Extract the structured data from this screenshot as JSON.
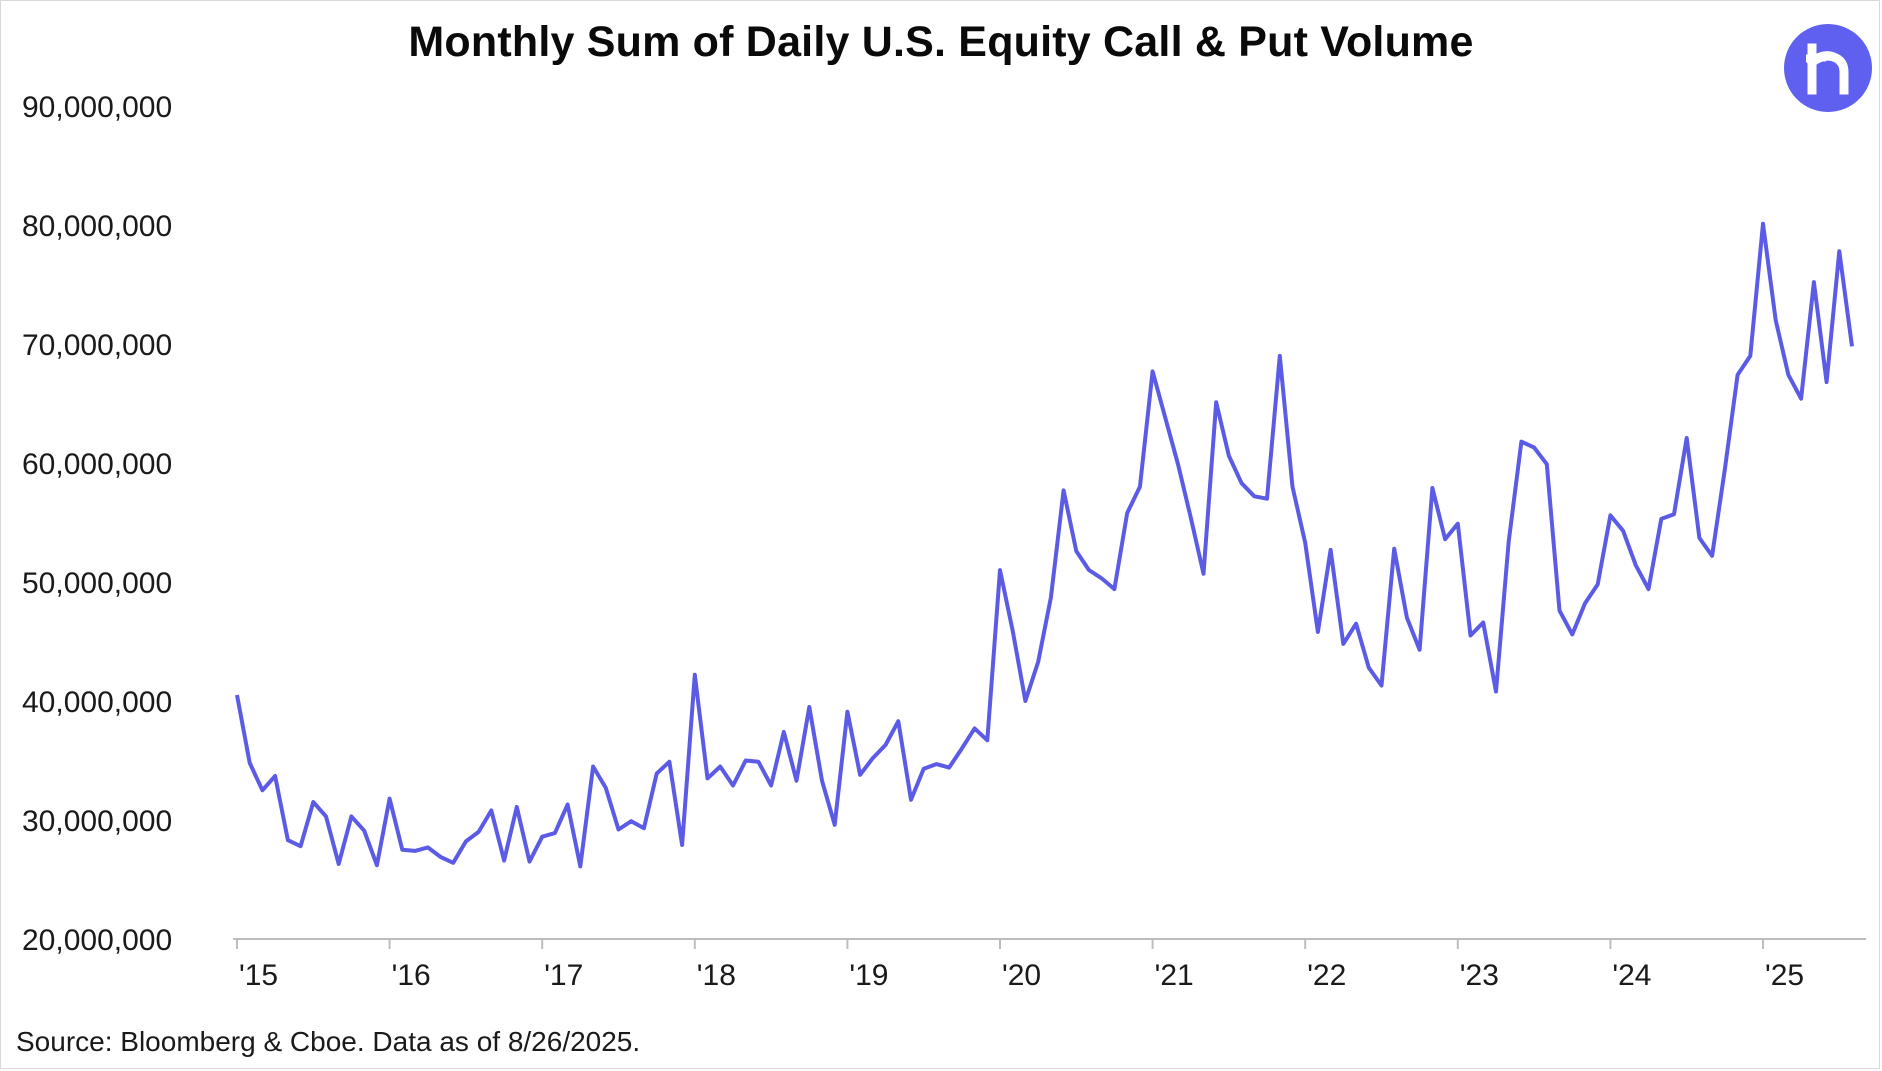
{
  "chart_data": {
    "type": "line",
    "title": "Monthly Sum of Daily U.S. Equity Call & Put Volume",
    "xlabel": "",
    "ylabel": "",
    "ylim": [
      20000000,
      90000000
    ],
    "yticks": [
      "20,000,000",
      "30,000,000",
      "40,000,000",
      "50,000,000",
      "60,000,000",
      "70,000,000",
      "80,000,000",
      "90,000,000"
    ],
    "ytick_values": [
      20000000,
      30000000,
      40000000,
      50000000,
      60000000,
      70000000,
      80000000,
      90000000
    ],
    "xticks": [
      "'15",
      "'16",
      "'17",
      "'18",
      "'19",
      "'20",
      "'21",
      "'22",
      "'23",
      "'24",
      "'25"
    ],
    "grid": false,
    "legend": "none",
    "series": [
      {
        "color": "#5b5be6",
        "start": "2015-01",
        "values": [
          40500000,
          34800000,
          32500000,
          33700000,
          28300000,
          27800000,
          31500000,
          30300000,
          26300000,
          30300000,
          29100000,
          26200000,
          31800000,
          27500000,
          27400000,
          27700000,
          26900000,
          26400000,
          28200000,
          29000000,
          30800000,
          26600000,
          31100000,
          26500000,
          28600000,
          28900000,
          31300000,
          26100000,
          34500000,
          32700000,
          29200000,
          29900000,
          29300000,
          33900000,
          34900000,
          27900000,
          42200000,
          33500000,
          34500000,
          32900000,
          35000000,
          34900000,
          32900000,
          37400000,
          33300000,
          39500000,
          33300000,
          29600000,
          39100000,
          33800000,
          35200000,
          36300000,
          38300000,
          31700000,
          34300000,
          34700000,
          34400000,
          36000000,
          37700000,
          36700000,
          51000000,
          45900000,
          40000000,
          43300000,
          48700000,
          57700000,
          52600000,
          51000000,
          50300000,
          49400000,
          55800000,
          58000000,
          67700000,
          63800000,
          59900000,
          55400000,
          50700000,
          65100000,
          60600000,
          58300000,
          57200000,
          57000000,
          69000000,
          58000000,
          53300000,
          45800000,
          52700000,
          44800000,
          46500000,
          42800000,
          41300000,
          52800000,
          47000000,
          44300000,
          57900000,
          53600000,
          54900000,
          45500000,
          46600000,
          40800000,
          53400000,
          61800000,
          61300000,
          59900000,
          47600000,
          45600000,
          48200000,
          49800000,
          55600000,
          54300000,
          51400000,
          49400000,
          55300000,
          55700000,
          62100000,
          53700000,
          52200000,
          59500000,
          67400000,
          69000000,
          80100000,
          72000000,
          67400000,
          65400000,
          75200000,
          66800000,
          77800000,
          69800000
        ]
      }
    ]
  },
  "logo": {
    "color": "#5f5ff0",
    "icon": "robinhood-r-logo"
  },
  "footer": {
    "source": "Source: Bloomberg & Cboe. Data as of 8/26/2025."
  }
}
